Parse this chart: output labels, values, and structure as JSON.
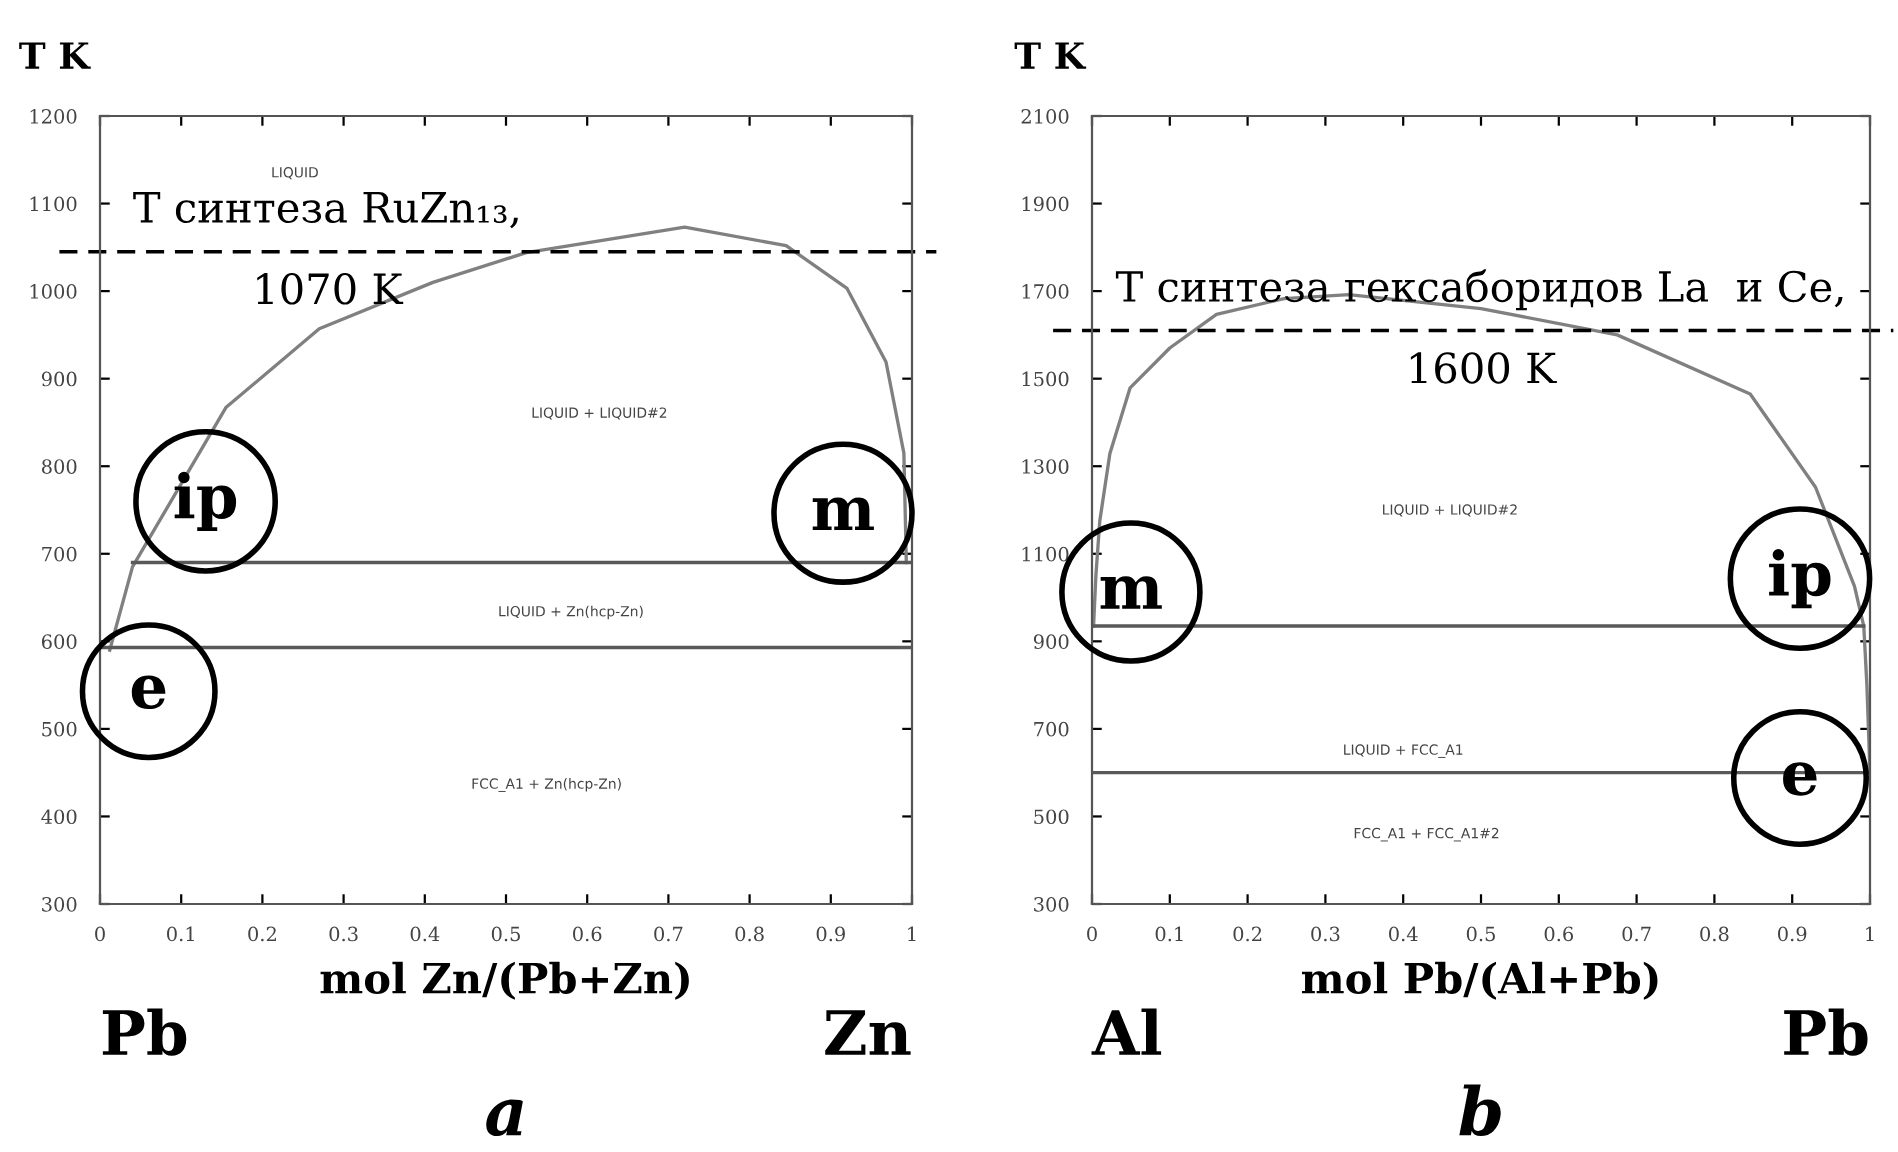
{
  "chart_data": [
    {
      "type": "line",
      "ylabel": "T K",
      "xlabel": "mol Zn/(Pb+Zn)",
      "xlim": [
        0,
        1
      ],
      "ylim": [
        300,
        1200
      ],
      "xticks": [
        0,
        0.1,
        0.2,
        0.3,
        0.4,
        0.5,
        0.6,
        0.7,
        0.8,
        0.9,
        1
      ],
      "yticks": [
        300,
        400,
        500,
        600,
        700,
        800,
        900,
        1000,
        1100,
        1200
      ],
      "series": [
        {
          "color": "#808080",
          "x": [
            0.012,
            0.04,
            0.155,
            0.27,
            0.41,
            0.525,
            0.72,
            0.845,
            0.92,
            0.968,
            0.99,
            0.993
          ],
          "values": [
            590,
            685,
            867,
            957,
            1010,
            1044,
            1073,
            1052,
            1003,
            919,
            815,
            690
          ]
        },
        {
          "color": "#595959",
          "x": [
            0.04,
            1
          ],
          "values": [
            690,
            690
          ]
        },
        {
          "color": "#595959",
          "x": [
            0,
            1
          ],
          "values": [
            593,
            593
          ]
        }
      ],
      "ref_lines": [
        {
          "axis": "y",
          "value": 1045,
          "label": "T синтеза RuZn₁₃,\n1070 K",
          "color": "#000000",
          "line_style": "dashed"
        }
      ],
      "annotations": [
        "LIQUID",
        "LIQUID + LIQUID#2",
        "LIQUID + Zn(hcp-Zn)",
        "FCC_A1 + Zn(hcp-Zn)",
        "ip",
        "m",
        "e",
        "Pb",
        "Zn",
        "a"
      ]
    },
    {
      "type": "line",
      "ylabel": "T K",
      "xlabel": "mol Pb/(Al+Pb)",
      "xlim": [
        0,
        1
      ],
      "ylim": [
        300,
        2100
      ],
      "xticks": [
        0,
        0.1,
        0.2,
        0.3,
        0.4,
        0.5,
        0.6,
        0.7,
        0.8,
        0.9,
        1
      ],
      "yticks": [
        300,
        500,
        700,
        900,
        1100,
        1300,
        1500,
        1700,
        1900,
        2100
      ],
      "series": [
        {
          "color": "#808080",
          "x": [
            0.002,
            0.005,
            0.01,
            0.023,
            0.049,
            0.1,
            0.16,
            0.247,
            0.33,
            0.5,
            0.675,
            0.846,
            0.93,
            0.98,
            0.992,
            0.996,
            1
          ],
          "values": [
            935,
            1050,
            1175,
            1329,
            1479,
            1570,
            1647,
            1683,
            1692,
            1660,
            1600,
            1465,
            1252,
            1026,
            935,
            800,
            600
          ]
        },
        {
          "color": "#595959",
          "x": [
            0,
            0.992
          ],
          "values": [
            935,
            935
          ]
        },
        {
          "color": "#595959",
          "x": [
            0,
            1
          ],
          "values": [
            600,
            600
          ]
        }
      ],
      "ref_lines": [
        {
          "axis": "y",
          "value": 1610,
          "label": "T синтеза гексаборидов La  и Ce,\n1600 K",
          "color": "#000000",
          "line_style": "dashed"
        }
      ],
      "annotations": [
        "LIQUID + LIQUID#2",
        "LIQUID + FCC_A1",
        "FCC_A1 + FCC_A1#2",
        "m",
        "ip",
        "e",
        "Al",
        "Pb",
        "b"
      ]
    }
  ]
}
